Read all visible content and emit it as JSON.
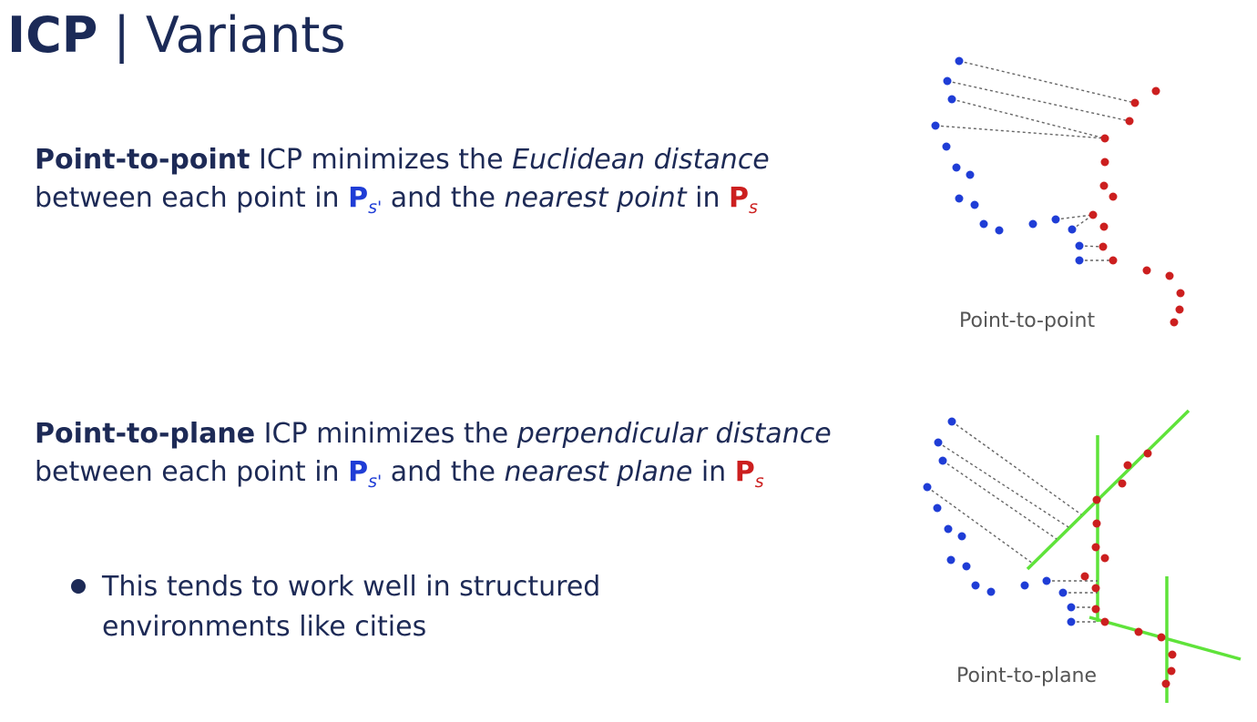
{
  "slide": {
    "title_bold": "ICP",
    "title_rest": " | Variants"
  },
  "p2p": {
    "bold": "Point-to-point",
    "t1": " ICP minimizes the ",
    "em1": "Euclidean distance",
    "t2": " between each point in ",
    "sym1": "P",
    "sym1_sub": "s'",
    "t3": " and the ",
    "em2": "nearest point",
    "t4": " in ",
    "sym2": "P",
    "sym2_sub": "s",
    "caption": "Point-to-point"
  },
  "p2pl": {
    "bold": "Point-to-plane",
    "t1": " ICP minimizes the ",
    "em1": "perpendicular distance",
    "t2": " between each point in ",
    "sym1": "P",
    "sym1_sub": "s'",
    "t3": "  and the ",
    "em2": "nearest plane",
    "t4": " in ",
    "sym2": "P",
    "sym2_sub": "s",
    "bullet": "This tends to work well in structured environments like cities",
    "caption": "Point-to-plane"
  },
  "colors": {
    "text": "#1d2a56",
    "source_points": "#1f3dd6",
    "target_points": "#cc1f1f",
    "plane_lines": "#5fe33a",
    "correspondence_lines": "#666666"
  }
}
